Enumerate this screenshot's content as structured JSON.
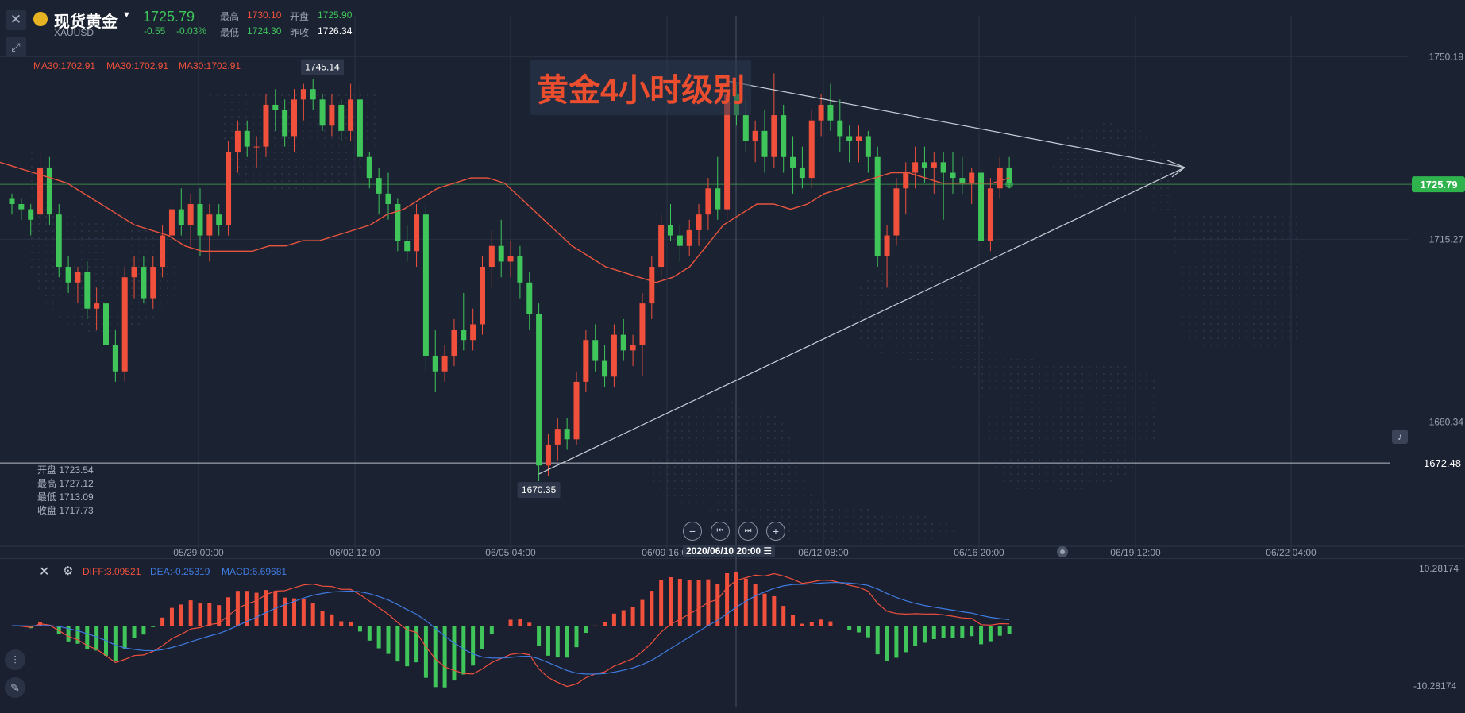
{
  "header": {
    "title": "现货黄金",
    "symbol": "XAUUSD",
    "price": "1725.79",
    "change": "-0.55",
    "change_pct": "-0.03%",
    "high_label": "最高",
    "high": "1730.10",
    "open_label": "开盘",
    "open": "1725.90",
    "low_label": "最低",
    "low": "1724.30",
    "prev_label": "昨收",
    "prev": "1726.34"
  },
  "ma_labels": [
    "MA30:1702.91",
    "MA30:1702.91",
    "MA30:1702.91"
  ],
  "overlay_title": "黄金4小时级别",
  "ohlc_box": {
    "open": "开盘 1723.54",
    "high": "最高 1727.12",
    "low": "最低 1713.09",
    "close": "收盘 1717.73"
  },
  "macd": {
    "diff": "DIFF:3.09521",
    "dea": "DEA:-0.25319",
    "macd": "MACD:6.69681",
    "y_top": "10.28174",
    "y_bottom": "-10.28174"
  },
  "crosshair_time": "2020/06/10 20:00 ☰",
  "icons": [
    "close-icon",
    "draw-tool-icon",
    "zoom-out-icon",
    "step-back-icon",
    "step-forward-icon",
    "zoom-in-icon",
    "alarm-bell-icon",
    "candle-type-icon",
    "pen-icon",
    "settings-icon"
  ],
  "colors": {
    "background": "#1b2232",
    "up": "#f0503c",
    "down": "#3fc55a",
    "ma": "#e9553e",
    "dea": "#3f7be0",
    "trendline": "#c9ced8"
  },
  "chart_data": {
    "type": "candlestick",
    "title": "黄金4小时级别",
    "ylim": [
      1657,
      1758
    ],
    "y_ticks": [
      "1750.19",
      "1715.27",
      "1680.34"
    ],
    "x_ticks": [
      "05/29 00:00",
      "06/02 12:00",
      "06/05 04:00",
      "06/09 16:00",
      "06/12 08:00",
      "06/16 20:00",
      "06/19 12:00",
      "06/22 04:00"
    ],
    "current_price": "1725.79",
    "alert_price": "1672.48",
    "annotations": [
      {
        "label": "1745.14",
        "kind": "high"
      },
      {
        "label": "1670.35",
        "kind": "low"
      }
    ],
    "ohlc": [
      [
        1723,
        1724,
        1720,
        1722
      ],
      [
        1722,
        1723,
        1719,
        1721
      ],
      [
        1721,
        1722,
        1716,
        1719
      ],
      [
        1720,
        1732,
        1718,
        1729
      ],
      [
        1729,
        1731,
        1718,
        1720
      ],
      [
        1720,
        1722,
        1708,
        1710
      ],
      [
        1710,
        1712,
        1705,
        1707
      ],
      [
        1707,
        1710,
        1703,
        1709
      ],
      [
        1709,
        1711,
        1700,
        1702
      ],
      [
        1702,
        1706,
        1698,
        1703
      ],
      [
        1703,
        1705,
        1692,
        1695
      ],
      [
        1695,
        1698,
        1688,
        1690
      ],
      [
        1690,
        1710,
        1688,
        1708
      ],
      [
        1708,
        1712,
        1704,
        1710
      ],
      [
        1710,
        1712,
        1703,
        1704
      ],
      [
        1704,
        1712,
        1702,
        1710
      ],
      [
        1710,
        1718,
        1708,
        1716
      ],
      [
        1716,
        1723,
        1714,
        1721
      ],
      [
        1721,
        1725,
        1716,
        1718
      ],
      [
        1718,
        1724,
        1714,
        1722
      ],
      [
        1722,
        1725,
        1712,
        1716
      ],
      [
        1716,
        1722,
        1711,
        1720
      ],
      [
        1720,
        1722,
        1716,
        1718
      ],
      [
        1718,
        1734,
        1716,
        1732
      ],
      [
        1732,
        1738,
        1728,
        1736
      ],
      [
        1736,
        1738,
        1731,
        1733
      ],
      [
        1733,
        1735,
        1729,
        1733
      ],
      [
        1733,
        1743,
        1731,
        1741
      ],
      [
        1741,
        1744,
        1736,
        1740
      ],
      [
        1740,
        1742,
        1733,
        1735
      ],
      [
        1735,
        1744,
        1732,
        1742
      ],
      [
        1742,
        1745,
        1738,
        1744
      ],
      [
        1744,
        1746,
        1740,
        1742
      ],
      [
        1742,
        1743,
        1736,
        1737
      ],
      [
        1737,
        1743,
        1735,
        1741
      ],
      [
        1741,
        1742,
        1734,
        1736
      ],
      [
        1736,
        1745,
        1734,
        1742
      ],
      [
        1742,
        1745,
        1729,
        1731
      ],
      [
        1731,
        1732,
        1725,
        1727
      ],
      [
        1727,
        1729,
        1720,
        1724
      ],
      [
        1724,
        1728,
        1719,
        1722
      ],
      [
        1722,
        1723,
        1713,
        1715
      ],
      [
        1715,
        1718,
        1711,
        1713
      ],
      [
        1713,
        1722,
        1710,
        1720
      ],
      [
        1720,
        1722,
        1690,
        1693
      ],
      [
        1693,
        1698,
        1686,
        1690
      ],
      [
        1690,
        1695,
        1688,
        1693
      ],
      [
        1693,
        1700,
        1691,
        1698
      ],
      [
        1698,
        1705,
        1694,
        1696
      ],
      [
        1696,
        1702,
        1694,
        1699
      ],
      [
        1699,
        1712,
        1697,
        1710
      ],
      [
        1710,
        1717,
        1706,
        1714
      ],
      [
        1714,
        1719,
        1708,
        1711
      ],
      [
        1711,
        1715,
        1708,
        1712
      ],
      [
        1712,
        1714,
        1704,
        1707
      ],
      [
        1707,
        1709,
        1698,
        1701
      ],
      [
        1701,
        1703,
        1669,
        1672
      ],
      [
        1672,
        1678,
        1670,
        1676
      ],
      [
        1676,
        1681,
        1673,
        1679
      ],
      [
        1679,
        1681,
        1675,
        1677
      ],
      [
        1677,
        1690,
        1676,
        1688
      ],
      [
        1688,
        1698,
        1686,
        1696
      ],
      [
        1696,
        1699,
        1690,
        1692
      ],
      [
        1692,
        1695,
        1687,
        1689
      ],
      [
        1689,
        1699,
        1687,
        1697
      ],
      [
        1697,
        1700,
        1692,
        1694
      ],
      [
        1694,
        1697,
        1691,
        1695
      ],
      [
        1695,
        1705,
        1689,
        1703
      ],
      [
        1703,
        1712,
        1700,
        1710
      ],
      [
        1710,
        1720,
        1708,
        1718
      ],
      [
        1718,
        1722,
        1715,
        1716
      ],
      [
        1716,
        1718,
        1711,
        1714
      ],
      [
        1714,
        1719,
        1712,
        1717
      ],
      [
        1717,
        1722,
        1714,
        1720
      ],
      [
        1720,
        1727,
        1717,
        1725
      ],
      [
        1725,
        1731,
        1719,
        1721
      ],
      [
        1721,
        1746,
        1719,
        1743
      ],
      [
        1743,
        1745,
        1737,
        1739
      ],
      [
        1739,
        1742,
        1732,
        1734
      ],
      [
        1734,
        1738,
        1730,
        1736
      ],
      [
        1736,
        1740,
        1728,
        1731
      ],
      [
        1731,
        1747,
        1729,
        1739
      ],
      [
        1739,
        1741,
        1728,
        1731
      ],
      [
        1731,
        1735,
        1724,
        1729
      ],
      [
        1729,
        1733,
        1725,
        1727
      ],
      [
        1727,
        1740,
        1725,
        1738
      ],
      [
        1738,
        1743,
        1735,
        1741
      ],
      [
        1741,
        1745,
        1736,
        1738
      ],
      [
        1738,
        1742,
        1732,
        1735
      ],
      [
        1735,
        1737,
        1730,
        1734
      ],
      [
        1734,
        1737,
        1730,
        1735
      ],
      [
        1735,
        1736,
        1728,
        1731
      ],
      [
        1731,
        1733,
        1710,
        1712
      ],
      [
        1712,
        1718,
        1706,
        1716
      ],
      [
        1716,
        1727,
        1714,
        1725
      ],
      [
        1725,
        1730,
        1720,
        1728
      ],
      [
        1728,
        1733,
        1725,
        1730
      ],
      [
        1730,
        1733,
        1726,
        1729
      ],
      [
        1729,
        1732,
        1724,
        1730
      ],
      [
        1730,
        1732,
        1719,
        1728
      ],
      [
        1728,
        1732,
        1724,
        1727
      ],
      [
        1727,
        1731,
        1724,
        1726
      ],
      [
        1726,
        1729,
        1722,
        1728
      ],
      [
        1728,
        1730,
        1713,
        1715
      ],
      [
        1715,
        1727,
        1713,
        1725
      ],
      [
        1725,
        1731,
        1723,
        1729
      ],
      [
        1729,
        1731,
        1725,
        1726
      ]
    ],
    "ma30": [
      1730,
      1729,
      1728,
      1727,
      1726,
      1724,
      1722,
      1720,
      1718,
      1717,
      1716,
      1714,
      1713,
      1713,
      1713,
      1713,
      1714,
      1714,
      1715,
      1715,
      1716,
      1717,
      1718,
      1720,
      1721,
      1723,
      1725,
      1726,
      1727,
      1727,
      1726,
      1723,
      1720,
      1717,
      1714,
      1712,
      1710,
      1709,
      1708,
      1707,
      1708,
      1710,
      1714,
      1718,
      1720,
      1722,
      1722,
      1721,
      1722,
      1724,
      1725,
      1726,
      1727,
      1728,
      1728,
      1727,
      1726,
      1726,
      1726,
      1726,
      1727
    ]
  }
}
